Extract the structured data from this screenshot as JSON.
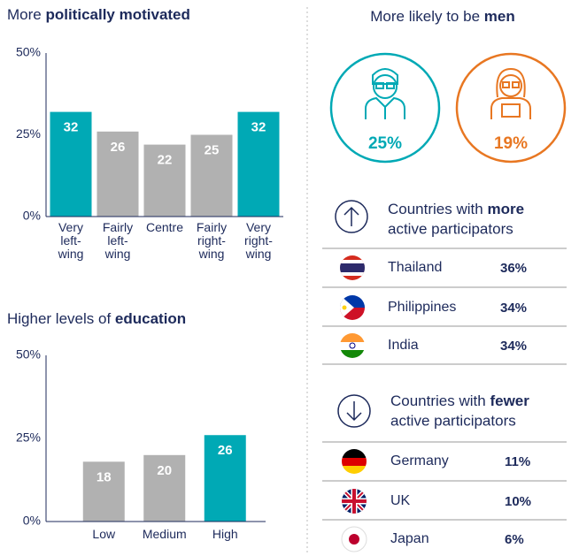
{
  "chart_data": [
    {
      "type": "bar",
      "title_parts": [
        "More",
        "politically motivated"
      ],
      "categories": [
        "Very\nleft-\nwing",
        "Fairly\nleft-\nwing",
        "Centre",
        "Fairly\nright-\nwing",
        "Very\nright-\nwing"
      ],
      "values": [
        32,
        26,
        22,
        25,
        32
      ],
      "colors": [
        "#00a9b5",
        "#b1b1b1",
        "#b1b1b1",
        "#b1b1b1",
        "#00a9b5"
      ],
      "ylim": [
        0,
        50
      ],
      "yticks": [
        {
          "value": 0,
          "label": "0%"
        },
        {
          "value": 25,
          "label": "25%"
        },
        {
          "value": 50,
          "label": "50%"
        }
      ]
    },
    {
      "type": "bar",
      "title_parts": [
        "Higher levels of",
        "education"
      ],
      "categories": [
        "Low",
        "Medium",
        "High"
      ],
      "values": [
        18,
        20,
        26
      ],
      "colors": [
        "#b1b1b1",
        "#b1b1b1",
        "#00a9b5"
      ],
      "ylim": [
        0,
        50
      ],
      "yticks": [
        {
          "value": 0,
          "label": "0%"
        },
        {
          "value": 25,
          "label": "25%"
        },
        {
          "value": 50,
          "label": "50%"
        }
      ]
    }
  ],
  "men_panel": {
    "title_parts": [
      "More likely to be",
      "men"
    ],
    "men_pct": "25%",
    "women_pct": "19%"
  },
  "more_countries": {
    "heading_parts": [
      "Countries with",
      "more",
      "active participators"
    ],
    "rows": [
      [
        "Thailand",
        "36%"
      ],
      [
        "Philippines",
        "34%"
      ],
      [
        "India",
        "34%"
      ]
    ]
  },
  "fewer_countries": {
    "heading_parts": [
      "Countries with",
      "fewer",
      "active participators"
    ],
    "rows": [
      [
        "Germany",
        "11%"
      ],
      [
        "UK",
        "10%"
      ],
      [
        "Japan",
        "6%"
      ]
    ]
  }
}
